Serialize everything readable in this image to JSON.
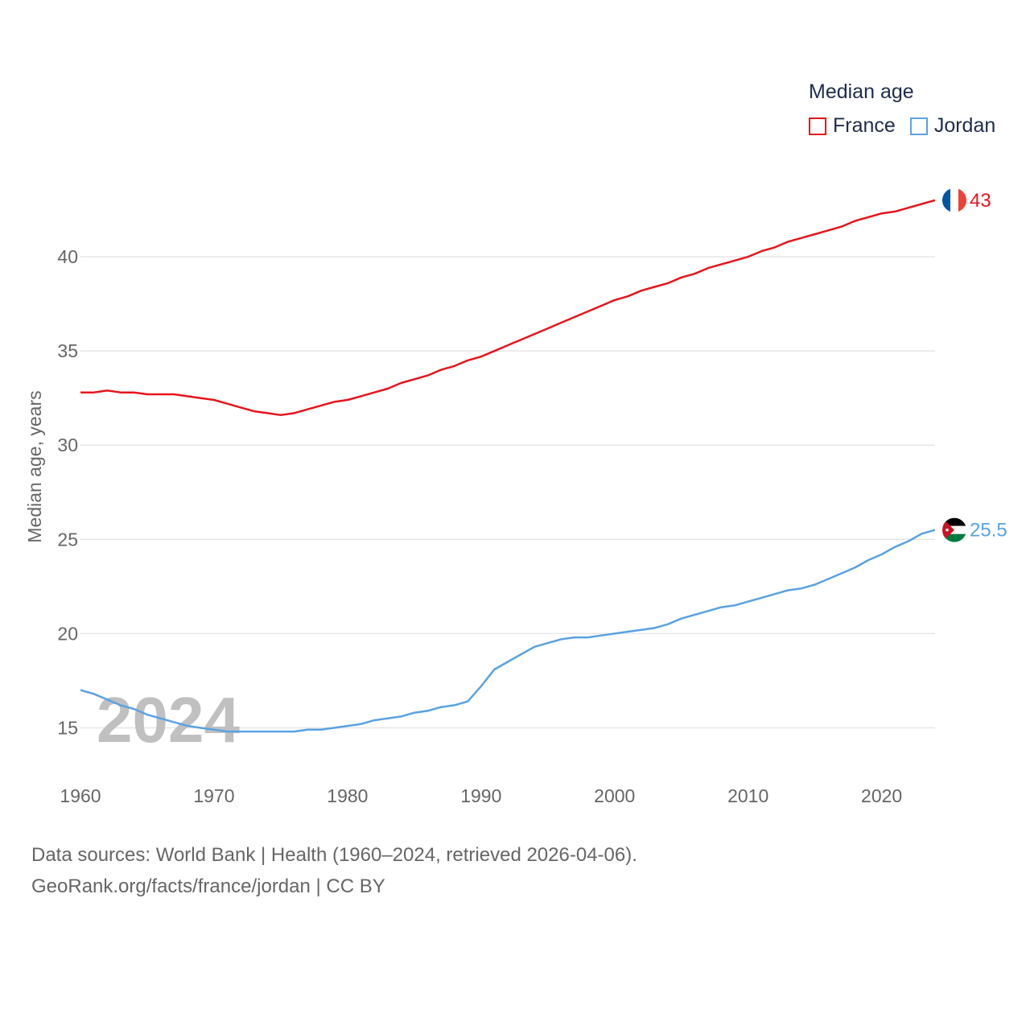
{
  "chart_data": {
    "type": "line",
    "title": "Median age",
    "ylabel": "Median age, years",
    "xlabel": "",
    "xlim": [
      1960,
      2024
    ],
    "ylim": [
      12.5,
      45
    ],
    "yticks": [
      15,
      20,
      25,
      30,
      35,
      40
    ],
    "xticks": [
      1960,
      1970,
      1980,
      1990,
      2000,
      2010,
      2020
    ],
    "grid": true,
    "legend_position": "top-right",
    "watermark_year": "2024",
    "x": [
      1960,
      1961,
      1962,
      1963,
      1964,
      1965,
      1966,
      1967,
      1968,
      1969,
      1970,
      1971,
      1972,
      1973,
      1974,
      1975,
      1976,
      1977,
      1978,
      1979,
      1980,
      1981,
      1982,
      1983,
      1984,
      1985,
      1986,
      1987,
      1988,
      1989,
      1990,
      1991,
      1992,
      1993,
      1994,
      1995,
      1996,
      1997,
      1998,
      1999,
      2000,
      2001,
      2002,
      2003,
      2004,
      2005,
      2006,
      2007,
      2008,
      2009,
      2010,
      2011,
      2012,
      2013,
      2014,
      2015,
      2016,
      2017,
      2018,
      2019,
      2020,
      2021,
      2022,
      2023,
      2024
    ],
    "series": [
      {
        "name": "France",
        "color": "#e8141c",
        "end_label": "43",
        "flag": "france",
        "values": [
          32.8,
          32.8,
          32.9,
          32.8,
          32.8,
          32.7,
          32.7,
          32.7,
          32.6,
          32.5,
          32.4,
          32.2,
          32.0,
          31.8,
          31.7,
          31.6,
          31.7,
          31.9,
          32.1,
          32.3,
          32.4,
          32.6,
          32.8,
          33.0,
          33.3,
          33.5,
          33.7,
          34.0,
          34.2,
          34.5,
          34.7,
          35.0,
          35.3,
          35.6,
          35.9,
          36.2,
          36.5,
          36.8,
          37.1,
          37.4,
          37.7,
          37.9,
          38.2,
          38.4,
          38.6,
          38.9,
          39.1,
          39.4,
          39.6,
          39.8,
          40.0,
          40.3,
          40.5,
          40.8,
          41.0,
          41.2,
          41.4,
          41.6,
          41.9,
          42.1,
          42.3,
          42.4,
          42.6,
          42.8,
          43.0
        ]
      },
      {
        "name": "Jordan",
        "color": "#5ba2e3",
        "end_label": "25.5",
        "flag": "jordan",
        "values": [
          17.0,
          16.8,
          16.5,
          16.2,
          16.0,
          15.7,
          15.5,
          15.3,
          15.1,
          15.0,
          14.9,
          14.8,
          14.8,
          14.8,
          14.8,
          14.8,
          14.8,
          14.9,
          14.9,
          15.0,
          15.1,
          15.2,
          15.4,
          15.5,
          15.6,
          15.8,
          15.9,
          16.1,
          16.2,
          16.4,
          17.2,
          18.1,
          18.5,
          18.9,
          19.3,
          19.5,
          19.7,
          19.8,
          19.8,
          19.9,
          20.0,
          20.1,
          20.2,
          20.3,
          20.5,
          20.8,
          21.0,
          21.2,
          21.4,
          21.5,
          21.7,
          21.9,
          22.1,
          22.3,
          22.4,
          22.6,
          22.9,
          23.2,
          23.5,
          23.9,
          24.2,
          24.6,
          24.9,
          25.3,
          25.5
        ]
      }
    ]
  },
  "legend": {
    "title": "Median age",
    "items": [
      {
        "label": "France",
        "color": "#e8141c"
      },
      {
        "label": "Jordan",
        "color": "#5ba2e3"
      }
    ]
  },
  "footer": {
    "sources": "Data sources: World Bank | Health (1960–2024, retrieved 2026-04-06).",
    "attribution": "GeoRank.org/facts/france/jordan | CC BY"
  }
}
